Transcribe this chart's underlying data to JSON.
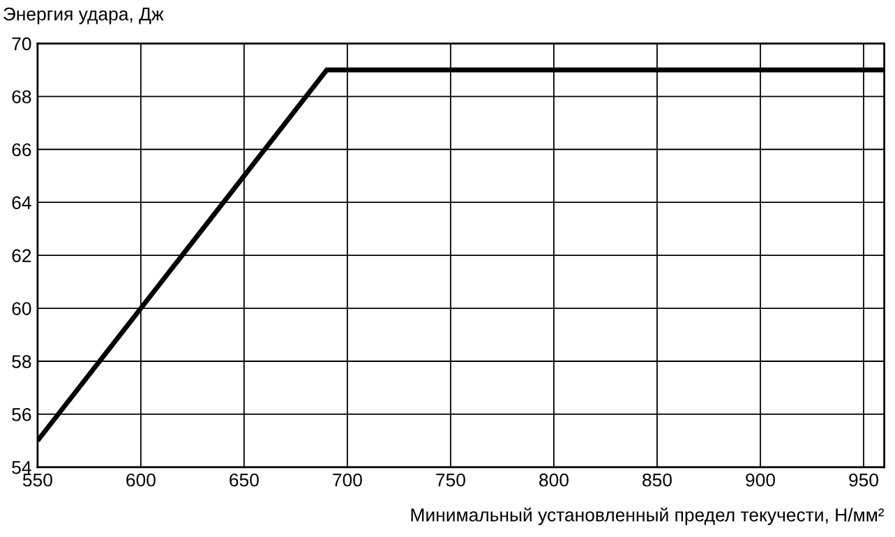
{
  "chart_data": {
    "type": "line",
    "ylabel": "Энергия удара, Дж",
    "xlabel": "Минимальный установленный предел текучести, Н/мм²",
    "series": [
      {
        "color": "#000000",
        "x": [
          550,
          690,
          960
        ],
        "values": [
          55,
          69,
          69
        ]
      }
    ],
    "xlim": [
      550,
      960
    ],
    "xticks": [
      550,
      600,
      650,
      700,
      750,
      800,
      850,
      900,
      950
    ],
    "ylim": [
      54,
      70
    ],
    "yticks": [
      54,
      56,
      58,
      60,
      62,
      64,
      66,
      68,
      70
    ],
    "grid": true,
    "marker": "none",
    "line_style": "solid"
  }
}
